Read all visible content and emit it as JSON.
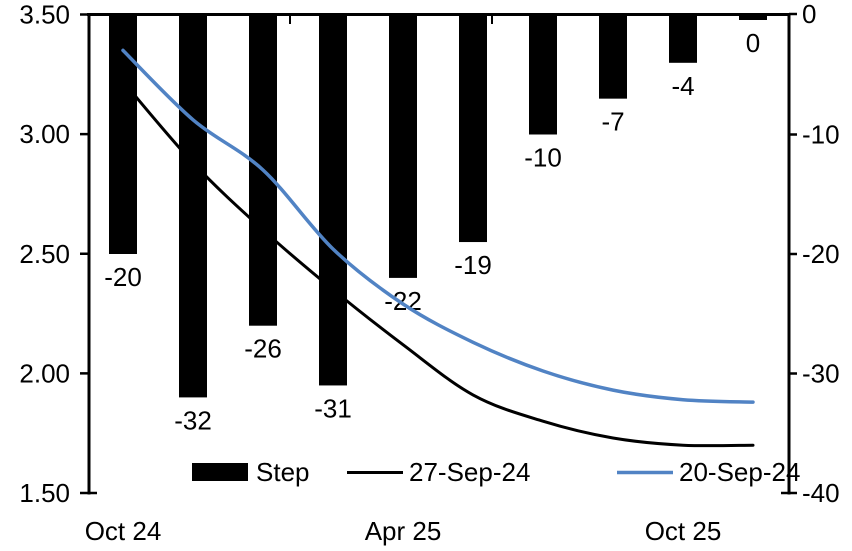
{
  "chart_data": {
    "type": "bar+line combo (policy-rate path vs per-meeting step)",
    "title": "",
    "num_slots": 10,
    "x_axis": {
      "tick_labels": [
        {
          "text": "Oct 24",
          "slot": 0
        },
        {
          "text": "Apr 25",
          "slot": 4
        },
        {
          "text": "Oct 25",
          "slot": 8
        }
      ]
    },
    "left_axis": {
      "min": 1.5,
      "max": 3.5,
      "tick_labels": [
        "3.50",
        "3.00",
        "2.50",
        "2.00",
        "1.50"
      ],
      "tick_values": [
        3.5,
        3.0,
        2.5,
        2.0,
        1.5
      ]
    },
    "right_axis": {
      "min": -40,
      "max": 0,
      "tick_labels": [
        "0",
        "-10",
        "-20",
        "-30",
        "-40"
      ],
      "tick_values": [
        0,
        -10,
        -20,
        -30,
        -40
      ]
    },
    "bars": {
      "name": "Step",
      "axis": "right",
      "color": "#000000",
      "values": [
        -20,
        -32,
        -26,
        -31,
        -22,
        -19,
        -10,
        -7,
        -4,
        0
      ],
      "labels": [
        "-20",
        "-32",
        "-26",
        "-31",
        "-22",
        "-19",
        "-10",
        "-7",
        "-4",
        "0"
      ]
    },
    "lines": [
      {
        "name": "27-Sep-24",
        "axis": "left",
        "color": "#000000",
        "stroke_width": 3,
        "drawn_over_bars": false,
        "values": [
          3.22,
          2.88,
          2.6,
          2.35,
          2.12,
          1.91,
          1.8,
          1.73,
          1.7,
          1.7
        ]
      },
      {
        "name": "20-Sep-24",
        "axis": "left",
        "color": "#5183C4",
        "stroke_width": 3.5,
        "drawn_over_bars": true,
        "values": [
          3.35,
          3.06,
          2.85,
          2.52,
          2.29,
          2.13,
          2.01,
          1.93,
          1.89,
          1.88
        ]
      }
    ],
    "legend": {
      "position": "bottom-inside",
      "entries": [
        "Step",
        "27-Sep-24",
        "20-Sep-24"
      ]
    }
  },
  "colors": {
    "background": "#ffffff",
    "axis": "#000000",
    "text": "#000000",
    "bar": "#000000",
    "blue_line": "#5183C4"
  }
}
